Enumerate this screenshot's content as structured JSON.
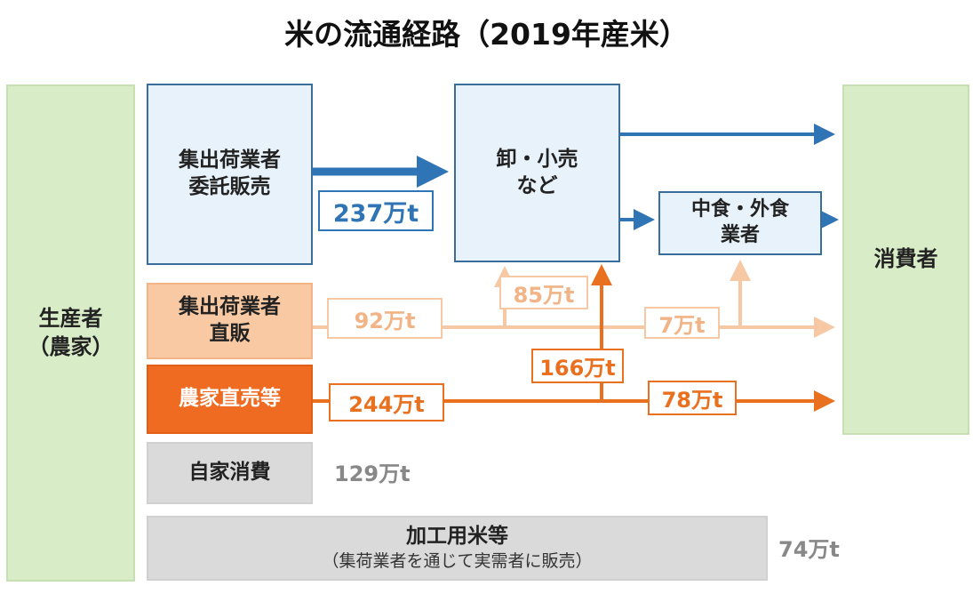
{
  "title": "米の流通経路（2019年産米）",
  "nodes": {
    "producer": "生産者\n（農家）",
    "consumer": "消費者",
    "consignment": "集出荷業者\n委託販売",
    "direct_shipper": "集出荷業者\n直販",
    "farmer_direct": "農家直売等",
    "self_consumption": "自家消費",
    "wholesale_retail": "卸・小売\nなど",
    "food_service": "中食・外食\n業者",
    "processing": {
      "title": "加工用米等",
      "note": "（集荷業者を通じて実需者に販売）"
    }
  },
  "flows": {
    "consignment_to_wholesale": "237万t",
    "direct_shipper_total": "92万t",
    "direct_shipper_to_wholesale": "85万t",
    "direct_shipper_to_consumer": "7万t",
    "farmer_direct_total": "244万t",
    "farmer_direct_to_wholesale": "166万t",
    "farmer_direct_to_consumer": "78万t",
    "self_consumption": "129万t",
    "processing": "74万t"
  },
  "colors": {
    "blue": "#2f74b5",
    "peach": "#f7c8a4",
    "orange": "#e8701f",
    "green": "#d9ecc8"
  }
}
